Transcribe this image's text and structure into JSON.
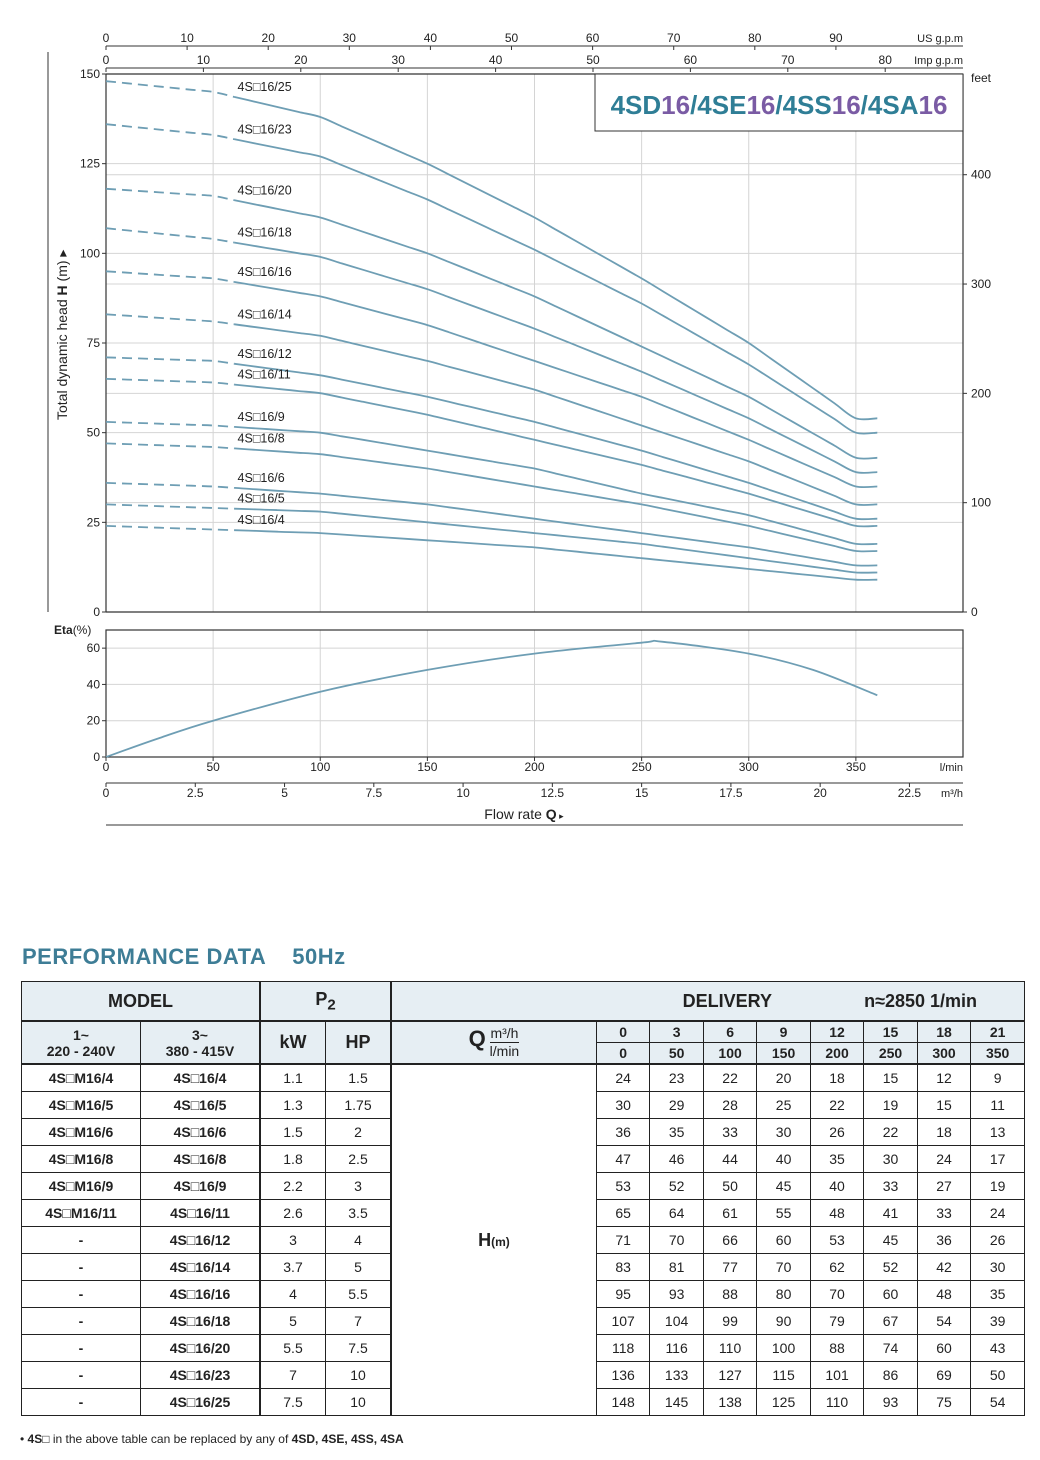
{
  "chart_data": [
    {
      "type": "line",
      "title": "4SD16/4SE16/4SS16/4SA16",
      "title_parts": [
        "4SD",
        "16",
        "/4SE",
        "16",
        "/4SS",
        "16",
        "/4SA",
        "16"
      ],
      "ylabel_prefix": "Total dynamic head",
      "ylabel_bold": "H",
      "ylabel_suffix": "(m)",
      "ylim": [
        0,
        150
      ],
      "yticks": [
        "0",
        "25",
        "50",
        "75",
        "100",
        "125",
        "150"
      ],
      "right_axis_label": "feet",
      "right_ticks": [
        "0",
        "100",
        "200",
        "300",
        "400"
      ],
      "top_axis_us_label": "US g.p.m",
      "top_axis_us_ticks": [
        "0",
        "10",
        "20",
        "30",
        "40",
        "50",
        "60",
        "70",
        "80",
        "90"
      ],
      "top_axis_imp_label": "Imp g.p.m",
      "top_axis_imp_ticks": [
        "0",
        "10",
        "20",
        "30",
        "40",
        "50",
        "60",
        "70",
        "80"
      ],
      "xlim": [
        0,
        400
      ],
      "x_lmin": [
        0,
        50,
        100,
        150,
        200,
        250,
        300,
        350
      ],
      "grid": true,
      "series": [
        {
          "name": "4S□16/25",
          "values": [
            148,
            145,
            138,
            125,
            110,
            93,
            75,
            54
          ]
        },
        {
          "name": "4S□16/23",
          "values": [
            136,
            133,
            127,
            115,
            101,
            86,
            69,
            50
          ]
        },
        {
          "name": "4S□16/20",
          "values": [
            118,
            116,
            110,
            100,
            88,
            74,
            60,
            43
          ]
        },
        {
          "name": "4S□16/18",
          "values": [
            107,
            104,
            99,
            90,
            79,
            67,
            54,
            39
          ]
        },
        {
          "name": "4S□16/16",
          "values": [
            95,
            93,
            88,
            80,
            70,
            60,
            48,
            35
          ]
        },
        {
          "name": "4S□16/14",
          "values": [
            83,
            81,
            77,
            70,
            62,
            52,
            42,
            30
          ]
        },
        {
          "name": "4S□16/12",
          "values": [
            71,
            70,
            66,
            60,
            53,
            45,
            36,
            26
          ]
        },
        {
          "name": "4S□16/11",
          "values": [
            65,
            64,
            61,
            55,
            48,
            41,
            33,
            24
          ]
        },
        {
          "name": "4S□16/9",
          "values": [
            53,
            52,
            50,
            45,
            40,
            33,
            27,
            19
          ]
        },
        {
          "name": "4S□16/8",
          "values": [
            47,
            46,
            44,
            40,
            35,
            30,
            24,
            17
          ]
        },
        {
          "name": "4S□16/6",
          "values": [
            36,
            35,
            33,
            30,
            26,
            22,
            18,
            13
          ]
        },
        {
          "name": "4S□16/5",
          "values": [
            30,
            29,
            28,
            25,
            22,
            19,
            15,
            11
          ]
        },
        {
          "name": "4S□16/4",
          "values": [
            24,
            23,
            22,
            20,
            18,
            15,
            12,
            9
          ]
        }
      ]
    },
    {
      "type": "line",
      "ylabel": "Eta",
      "ylabel_unit": "(%)",
      "ylim": [
        0,
        70
      ],
      "yticks": [
        "0",
        "20",
        "40",
        "60"
      ],
      "xlim": [
        0,
        400
      ],
      "x_lmin_ticks": [
        "0",
        "50",
        "100",
        "150",
        "200",
        "250",
        "300",
        "350"
      ],
      "x_lmin_label": "l/min",
      "x_m3h_ticks": [
        "0",
        "2.5",
        "5",
        "7.5",
        "10",
        "12.5",
        "15",
        "17.5",
        "20",
        "22.5"
      ],
      "x_m3h_label": "m³/h",
      "xlabel": "Flow rate",
      "xlabel_bold": "Q",
      "grid": true,
      "x": [
        0,
        25,
        50,
        100,
        150,
        200,
        250,
        260,
        300,
        330,
        360
      ],
      "values": [
        0,
        10.5,
        20,
        36,
        48,
        57,
        63,
        63.5,
        57,
        48,
        34
      ]
    }
  ],
  "colors": {
    "curve": "#6e9eb4",
    "grid": "#d4d4d4",
    "title_teal": "#2f7e96",
    "title_purple": "#7a5ba4",
    "header_teal": "#3e7d96",
    "table_header_bg": "#e6eef3"
  },
  "performance": {
    "title": "PERFORMANCE DATA",
    "hz": "50Hz",
    "model_header": "MODEL",
    "p2_header": "P",
    "p2_sub": "2",
    "delivery_header": "DELIVERY",
    "speed": "n≈2850 1/min",
    "col1_line1": "1~",
    "col1_line2": "220 - 240V",
    "col3_line1": "3~",
    "col3_line2": "380 - 415V",
    "kw": "kW",
    "hp": "HP",
    "q_label": "Q",
    "q_unit_m3h": "m³/h",
    "q_unit_lmin": "l/min",
    "q_m3h": [
      "0",
      "3",
      "6",
      "9",
      "12",
      "15",
      "18",
      "21"
    ],
    "q_lmin": [
      "0",
      "50",
      "100",
      "150",
      "200",
      "250",
      "300",
      "350"
    ],
    "h_label": "H",
    "h_unit": "(m)",
    "rows": [
      {
        "m1": "4S□M16/4",
        "m3": "4S□16/4",
        "kw": "1.1",
        "hp": "1.5",
        "h": [
          "24",
          "23",
          "22",
          "20",
          "18",
          "15",
          "12",
          "9"
        ]
      },
      {
        "m1": "4S□M16/5",
        "m3": "4S□16/5",
        "kw": "1.3",
        "hp": "1.75",
        "h": [
          "30",
          "29",
          "28",
          "25",
          "22",
          "19",
          "15",
          "11"
        ]
      },
      {
        "m1": "4S□M16/6",
        "m3": "4S□16/6",
        "kw": "1.5",
        "hp": "2",
        "h": [
          "36",
          "35",
          "33",
          "30",
          "26",
          "22",
          "18",
          "13"
        ]
      },
      {
        "m1": "4S□M16/8",
        "m3": "4S□16/8",
        "kw": "1.8",
        "hp": "2.5",
        "h": [
          "47",
          "46",
          "44",
          "40",
          "35",
          "30",
          "24",
          "17"
        ]
      },
      {
        "m1": "4S□M16/9",
        "m3": "4S□16/9",
        "kw": "2.2",
        "hp": "3",
        "h": [
          "53",
          "52",
          "50",
          "45",
          "40",
          "33",
          "27",
          "19"
        ]
      },
      {
        "m1": "4S□M16/11",
        "m3": "4S□16/11",
        "kw": "2.6",
        "hp": "3.5",
        "h": [
          "65",
          "64",
          "61",
          "55",
          "48",
          "41",
          "33",
          "24"
        ]
      },
      {
        "m1": "-",
        "m3": "4S□16/12",
        "kw": "3",
        "hp": "4",
        "h": [
          "71",
          "70",
          "66",
          "60",
          "53",
          "45",
          "36",
          "26"
        ]
      },
      {
        "m1": "-",
        "m3": "4S□16/14",
        "kw": "3.7",
        "hp": "5",
        "h": [
          "83",
          "81",
          "77",
          "70",
          "62",
          "52",
          "42",
          "30"
        ]
      },
      {
        "m1": "-",
        "m3": "4S□16/16",
        "kw": "4",
        "hp": "5.5",
        "h": [
          "95",
          "93",
          "88",
          "80",
          "70",
          "60",
          "48",
          "35"
        ]
      },
      {
        "m1": "-",
        "m3": "4S□16/18",
        "kw": "5",
        "hp": "7",
        "h": [
          "107",
          "104",
          "99",
          "90",
          "79",
          "67",
          "54",
          "39"
        ]
      },
      {
        "m1": "-",
        "m3": "4S□16/20",
        "kw": "5.5",
        "hp": "7.5",
        "h": [
          "118",
          "116",
          "110",
          "100",
          "88",
          "74",
          "60",
          "43"
        ]
      },
      {
        "m1": "-",
        "m3": "4S□16/23",
        "kw": "7",
        "hp": "10",
        "h": [
          "136",
          "133",
          "127",
          "115",
          "101",
          "86",
          "69",
          "50"
        ]
      },
      {
        "m1": "-",
        "m3": "4S□16/25",
        "kw": "7.5",
        "hp": "10",
        "h": [
          "148",
          "145",
          "138",
          "125",
          "110",
          "93",
          "75",
          "54"
        ]
      }
    ],
    "footnote_prefix": "• ",
    "footnote_code": "4S□",
    "footnote_mid": " in the above table can be replaced by any of ",
    "footnote_models": "4SD, 4SE, 4SS, 4SA"
  }
}
